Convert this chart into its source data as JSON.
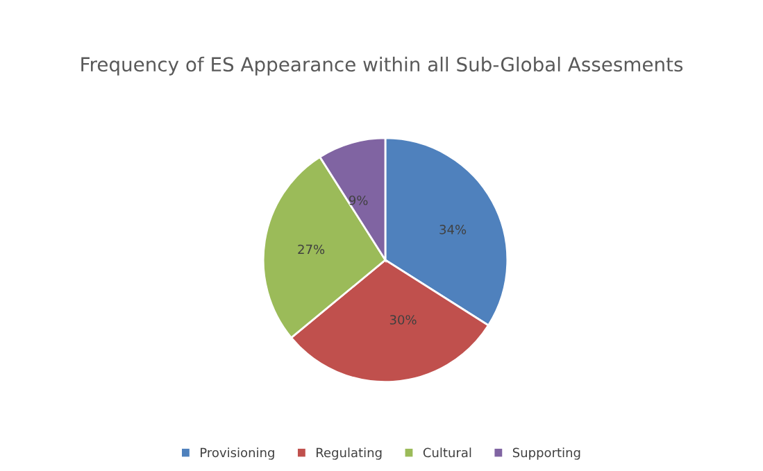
{
  "chart_data": {
    "type": "pie",
    "title": "Frequency of ES Appearance within all Sub-Global Assesments",
    "categories": [
      "Provisioning",
      "Regulating",
      "Cultural",
      "Supporting"
    ],
    "values": [
      34,
      30,
      27,
      9
    ],
    "colors": [
      "#4f81bd",
      "#c0504d",
      "#9bbb59",
      "#8064a2"
    ],
    "value_labels": [
      "34%",
      "30%",
      "27%",
      "9%"
    ],
    "legend": "bottom"
  }
}
